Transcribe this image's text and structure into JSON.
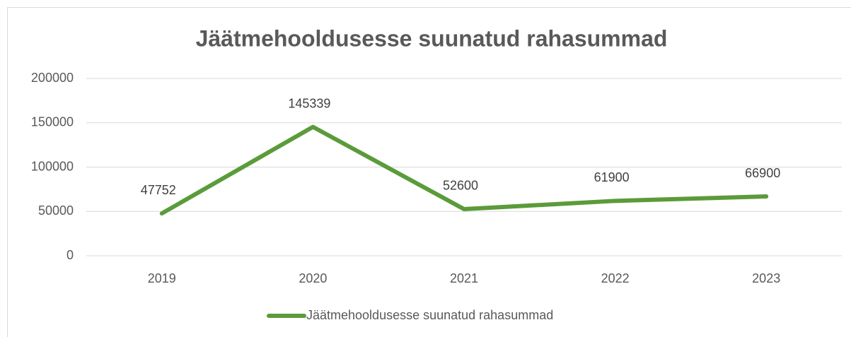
{
  "chart_data": {
    "type": "line",
    "title": "Jäätmehooldusesse suunatud rahasummad",
    "categories": [
      "2019",
      "2020",
      "2021",
      "2022",
      "2023"
    ],
    "series": [
      {
        "name": "Jäätmehooldusesse suunatud rahasummad",
        "color": "#5b9b3a",
        "values": [
          47752,
          145339,
          52600,
          61900,
          66900
        ]
      }
    ],
    "ylim": [
      0,
      200000
    ],
    "yticks": [
      0,
      50000,
      100000,
      150000,
      200000
    ],
    "grid": true,
    "legend": "bottom"
  }
}
